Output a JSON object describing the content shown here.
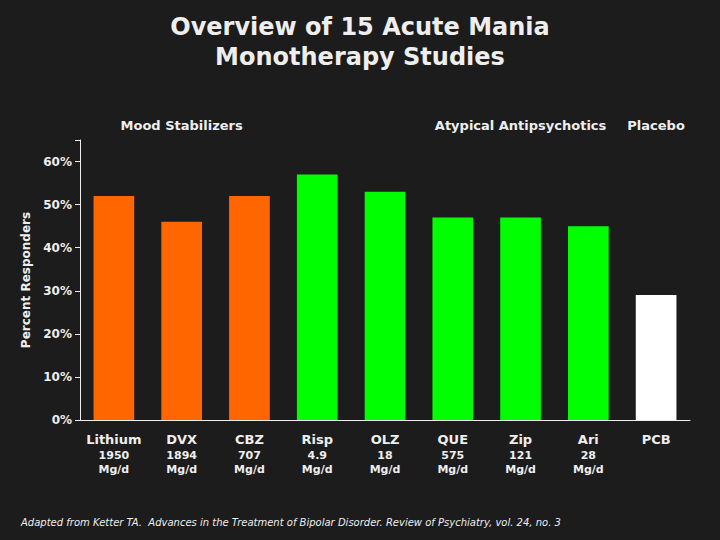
{
  "chart_data": {
    "type": "bar",
    "title": "Overview of 15 Acute Mania",
    "subtitle": "Monotherapy Studies",
    "ylabel": "Percent Responders",
    "footnote": "Adapted from Ketter TA.  Advances in the Treatment of Bipolar Disorder. Review of Psychiatry, vol. 24, no. 3",
    "categories": [
      "Lithium",
      "DVX",
      "CBZ",
      "Risp",
      "OLZ",
      "QUE",
      "Zip",
      "Ari",
      "PCB"
    ],
    "category_notes": [
      "1950\nMg/d",
      "1894\nMg/d",
      "707\nMg/d",
      "4.9\nMg/d",
      "18\nMg/d",
      "575\nMg/d",
      "121\nMg/d",
      "28\nMg/d",
      null
    ],
    "values": [
      52,
      46,
      52,
      57,
      53,
      47,
      47,
      45,
      29
    ],
    "colors": [
      "#FF6600",
      "#FF6600",
      "#FF6600",
      "#00FF00",
      "#00FF00",
      "#00FF00",
      "#00FF00",
      "#00FF00",
      "#FFFFFF"
    ],
    "annotations": [
      {
        "text": "Mood Stabilizers",
        "category": "DVX"
      },
      {
        "text": "Atypical Antipsychotics",
        "category": "Zip"
      },
      {
        "text": "Placebo",
        "category": "PCB"
      }
    ],
    "ylim": [
      0,
      65
    ],
    "yticks": [
      {
        "value": 0,
        "label": "0%"
      },
      {
        "value": 10,
        "label": "10%"
      },
      {
        "value": 20,
        "label": "20%"
      },
      {
        "value": 30,
        "label": "30%"
      },
      {
        "value": 40,
        "label": "40%"
      },
      {
        "value": 50,
        "label": "50%"
      },
      {
        "value": 60,
        "label": "60%"
      }
    ],
    "grid": false
  }
}
